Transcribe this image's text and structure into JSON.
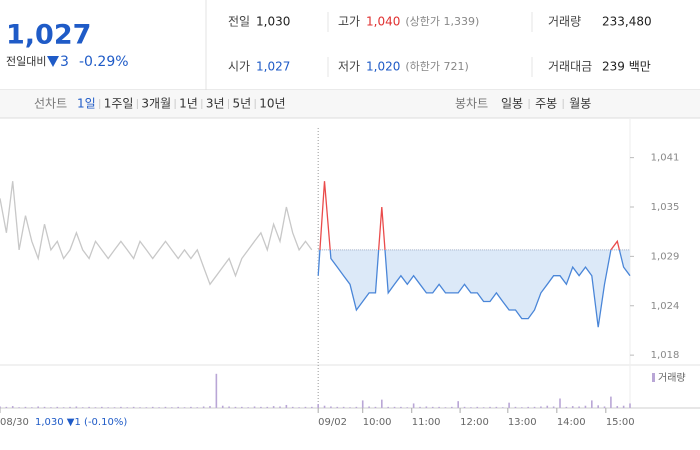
{
  "header": {
    "price": "1,027",
    "change_label": "전일대비",
    "change": "3",
    "change_pct": "-0.29%",
    "rows": [
      [
        {
          "label": "전일",
          "value": "1,030"
        },
        {
          "label": "고가",
          "value": "1,040",
          "note": "(상한가 1,339)"
        },
        {
          "label": "거래량",
          "value": "233,480"
        }
      ],
      [
        {
          "label": "시가",
          "value": "1,027"
        },
        {
          "label": "저가",
          "value": "1,020",
          "note": "(하한가 721)"
        },
        {
          "label": "거래대금",
          "value": "239 백만"
        }
      ]
    ]
  },
  "tabs": {
    "line_label": "선차트",
    "line_items": [
      "1일",
      "1주일",
      "3개월",
      "1년",
      "3년",
      "5년",
      "10년"
    ],
    "candle_label": "봉차트",
    "candle_items": [
      "일봉",
      "주봉",
      "월봉"
    ]
  },
  "chart_data": {
    "type": "line",
    "reference": 1030,
    "xlim": [
      0,
      99
    ],
    "ylim": [
      1016.6,
      1044.2
    ],
    "yticks": [
      {
        "value": 1040.75,
        "label": "1,041"
      },
      {
        "value": 1035,
        "label": "1,035"
      },
      {
        "value": 1029.25,
        "label": "1,029"
      },
      {
        "value": 1023.5,
        "label": "1,024"
      },
      {
        "value": 1017.75,
        "label": "1,018"
      }
    ],
    "xticks": [
      {
        "value": 0,
        "label": "08/30"
      },
      {
        "value": 50,
        "label": "09/02"
      },
      {
        "value": 57,
        "label": "10:00"
      },
      {
        "value": 64.7,
        "label": "11:00"
      },
      {
        "value": 72.3,
        "label": "12:00"
      },
      {
        "value": 79.8,
        "label": "13:00"
      },
      {
        "value": 87.5,
        "label": "14:00"
      },
      {
        "value": 95.2,
        "label": "15:00"
      }
    ],
    "prev_label": "1,030 ▼1 (-0.10%)",
    "series": [
      {
        "color": "#c8c8c8",
        "x": [
          0,
          1,
          2,
          3,
          4,
          5,
          6,
          7,
          8,
          9,
          10,
          11,
          12,
          13,
          14,
          15,
          16,
          17,
          18,
          19,
          20,
          21,
          22,
          23,
          24,
          25,
          26,
          27,
          28,
          29,
          30,
          31,
          32,
          33,
          34,
          35,
          36,
          37,
          38,
          39,
          40,
          41,
          42,
          43,
          44,
          45,
          46,
          47,
          48,
          49
        ],
        "values": [
          1036,
          1032,
          1038,
          1030,
          1034,
          1031,
          1029,
          1033,
          1030,
          1031,
          1029,
          1030,
          1032,
          1030,
          1029,
          1031,
          1030,
          1029,
          1030,
          1031,
          1030,
          1029,
          1031,
          1030,
          1029,
          1030,
          1031,
          1030,
          1029,
          1030,
          1029,
          1030,
          1028,
          1026,
          1027,
          1028,
          1029,
          1027,
          1029,
          1030,
          1031,
          1032,
          1030,
          1033,
          1031,
          1035,
          1032,
          1030,
          1031,
          1030
        ]
      },
      {
        "color": "#4a86d8",
        "up_color": "#ea4b4b",
        "fill": "#dce9f8",
        "x": [
          50,
          51,
          52,
          53,
          54,
          55,
          56,
          57,
          58,
          59,
          60,
          61,
          62,
          63,
          64,
          65,
          66,
          67,
          68,
          69,
          70,
          71,
          72,
          73,
          74,
          75,
          76,
          77,
          78,
          79,
          80,
          81,
          82,
          83,
          84,
          85,
          86,
          87,
          88,
          89,
          90,
          91,
          92,
          93,
          94,
          95,
          96,
          97,
          98,
          99
        ],
        "values": [
          1027,
          1038,
          1029,
          1028,
          1027,
          1026,
          1023,
          1024,
          1025,
          1025,
          1035,
          1025,
          1026,
          1027,
          1026,
          1027,
          1026,
          1025,
          1025,
          1026,
          1025,
          1025,
          1025,
          1026,
          1025,
          1025,
          1024,
          1024,
          1025,
          1024,
          1023,
          1023,
          1022,
          1022,
          1023,
          1025,
          1026,
          1027,
          1027,
          1026,
          1028,
          1027,
          1028,
          1027,
          1021,
          1026,
          1030,
          1031,
          1028,
          1027
        ]
      }
    ],
    "volume": {
      "label": "거래량",
      "color": "#b9a6d6",
      "ylim": [
        0,
        100
      ],
      "values": [
        4,
        3,
        5,
        2,
        3,
        2,
        4,
        3,
        2,
        3,
        2,
        3,
        4,
        2,
        3,
        2,
        3,
        2,
        2,
        3,
        2,
        3,
        2,
        2,
        3,
        2,
        3,
        2,
        3,
        2,
        3,
        2,
        4,
        5,
        90,
        6,
        4,
        3,
        3,
        2,
        4,
        3,
        3,
        5,
        4,
        8,
        3,
        2,
        3,
        3,
        10,
        6,
        4,
        3,
        3,
        2,
        3,
        20,
        4,
        3,
        22,
        3,
        3,
        3,
        2,
        12,
        3,
        4,
        3,
        3,
        2,
        3,
        18,
        3,
        2,
        3,
        2,
        3,
        3,
        2,
        14,
        3,
        2,
        3,
        3,
        4,
        6,
        4,
        25,
        3,
        5,
        4,
        6,
        20,
        7,
        4,
        30,
        5,
        6,
        12
      ]
    }
  }
}
